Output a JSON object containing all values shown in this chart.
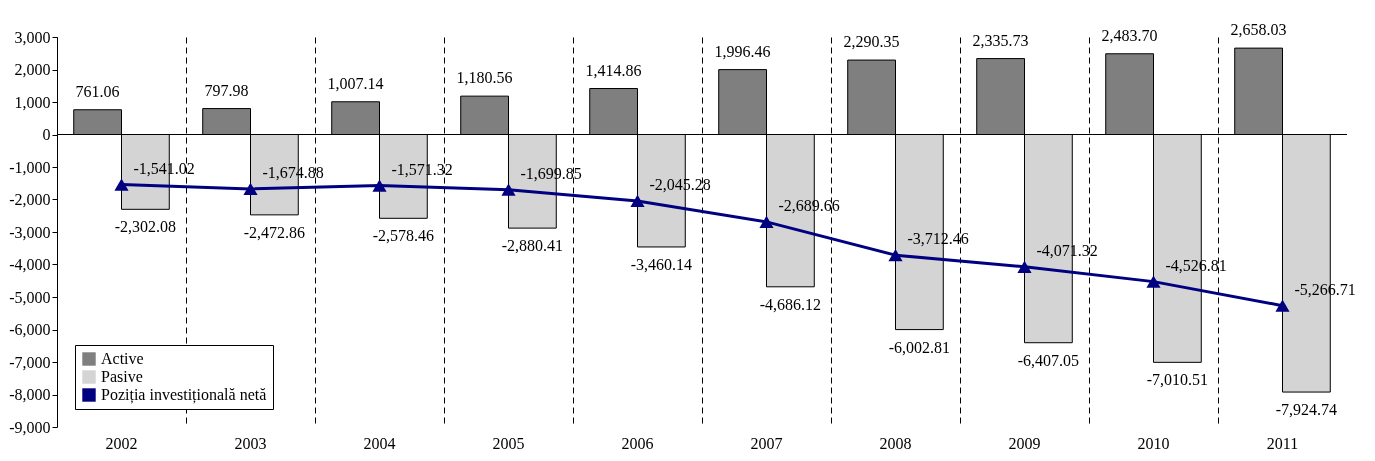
{
  "chart_data": {
    "type": "bar",
    "categories": [
      "2002",
      "2003",
      "2004",
      "2005",
      "2006",
      "2007",
      "2008",
      "2009",
      "2010",
      "2011"
    ],
    "series": [
      {
        "name": "Active",
        "color": "#7f7f7f",
        "values": [
          761.06,
          797.98,
          1007.14,
          1180.56,
          1414.86,
          1996.46,
          2290.35,
          2335.73,
          2483.7,
          2658.03
        ],
        "value_labels": [
          "761.06",
          "797.98",
          "1,007.14",
          "1,180.56",
          "1,414.86",
          "1,996.46",
          "2,290.35",
          "2,335.73",
          "2,483.70",
          "2,658.03"
        ]
      },
      {
        "name": "Pasive",
        "color": "#d4d4d4",
        "values": [
          -2302.08,
          -2472.86,
          -2578.46,
          -2880.41,
          -3460.14,
          -4686.12,
          -6002.81,
          -6407.05,
          -7010.51,
          -7924.74
        ],
        "value_labels": [
          "-2,302.08",
          "-2,472.86",
          "-2,578.46",
          "-2,880.41",
          "-3,460.14",
          "-4,686.12",
          "-6,002.81",
          "-6,407.05",
          "-7,010.51",
          "-7,924.74"
        ]
      },
      {
        "name": "Poziția investițională netă",
        "type": "line",
        "color": "#000080",
        "marker": "triangle",
        "line_style": "solid",
        "values": [
          -1541.02,
          -1674.88,
          -1571.32,
          -1699.85,
          -2045.28,
          -2689.66,
          -3712.46,
          -4071.32,
          -4526.81,
          -5266.71
        ],
        "value_labels": [
          "-1,541.02",
          "-1,674.88",
          "-1,571.32",
          "-1,699.85",
          "-2,045.28",
          "-2,689.66",
          "-3,712.46",
          "-4,071.32",
          "-4,526.81",
          "-5,266.71"
        ]
      }
    ],
    "ylim": [
      -9000,
      3000
    ],
    "yticks": [
      {
        "value": -9000,
        "label": "-9,000"
      },
      {
        "value": -8000,
        "label": "-8,000"
      },
      {
        "value": -7000,
        "label": "-7,000"
      },
      {
        "value": -6000,
        "label": "-6,000"
      },
      {
        "value": -5000,
        "label": "-5,000"
      },
      {
        "value": -4000,
        "label": "-4,000"
      },
      {
        "value": -3000,
        "label": "-3,000"
      },
      {
        "value": -2000,
        "label": "-2,000"
      },
      {
        "value": -1000,
        "label": "-1,000"
      },
      0,
      {
        "value": 1000,
        "label": "1,000"
      },
      {
        "value": 2000,
        "label": "2,000"
      },
      {
        "value": 3000,
        "label": "3,000"
      }
    ],
    "grid": "x",
    "legend": "bottom left"
  }
}
